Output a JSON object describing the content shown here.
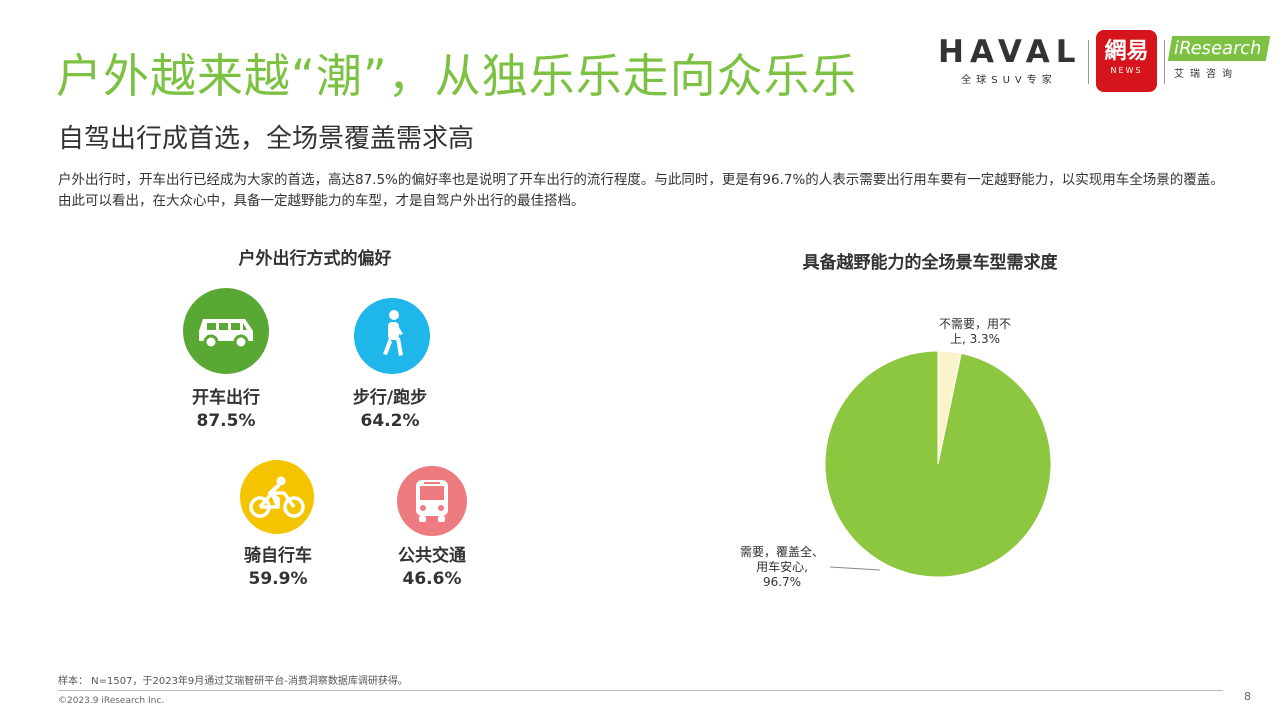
{
  "header": {
    "title": "户外越来越“潮”，从独乐乐走向众乐乐",
    "subtitle": "自驾出行成首选，全场景覆盖需求高",
    "description": "户外出行时，开车出行已经成为大家的首选，高达87.5%的偏好率也是说明了开车出行的流行程度。与此同时，更是有96.7%的人表示需要出行用车要有一定越野能力，以实现用车全场景的覆盖。由此可以看出，在大众心中，具备一定越野能力的车型，才是自驾户外出行的最佳搭档。"
  },
  "logos": {
    "haval": {
      "name": "HAVAL",
      "tagline": "全球SUV专家"
    },
    "netease": {
      "name": "網易",
      "sub": "NEWS"
    },
    "iresearch": {
      "name": "iResearch",
      "sub": "艾瑞咨询"
    }
  },
  "colors": {
    "title_green": "#7cc142",
    "car_green": "#5aa834",
    "walk_cyan": "#1fb6e9",
    "bike_yellow": "#f5c400",
    "bus_red": "#ee7b80",
    "pie_green": "#8dc63f",
    "pie_cream": "#fbf3cc"
  },
  "chart_data": [
    {
      "type": "table",
      "title": "户外出行方式的偏好",
      "items": [
        {
          "label": "开车出行",
          "value": 87.5,
          "value_text": "87.5%",
          "icon": "car-icon"
        },
        {
          "label": "步行/跑步",
          "value": 64.2,
          "value_text": "64.2%",
          "icon": "walking-icon"
        },
        {
          "label": "骑自行车",
          "value": 59.9,
          "value_text": "59.9%",
          "icon": "bicycle-icon"
        },
        {
          "label": "公共交通",
          "value": 46.6,
          "value_text": "46.6%",
          "icon": "bus-icon"
        }
      ]
    },
    {
      "type": "pie",
      "title": "具备越野能力的全场景车型需求度",
      "slices": [
        {
          "label": "不需要，用不上",
          "value": 3.3,
          "label_lines": [
            "不需要，用不",
            "上, 3.3%"
          ],
          "color": "#fbf3cc"
        },
        {
          "label": "需要，覆盖全、用车安心",
          "value": 96.7,
          "label_lines": [
            "需要，覆盖全、",
            "用车安心,",
            "96.7%"
          ],
          "color": "#8dc63f"
        }
      ]
    }
  ],
  "footer": {
    "note": "样本：  N=1507，于2023年9月通过艾瑞智研平台-消费洞察数据库调研获得。",
    "copyright": "©2023.9 iResearch Inc.",
    "page_number": "8"
  }
}
